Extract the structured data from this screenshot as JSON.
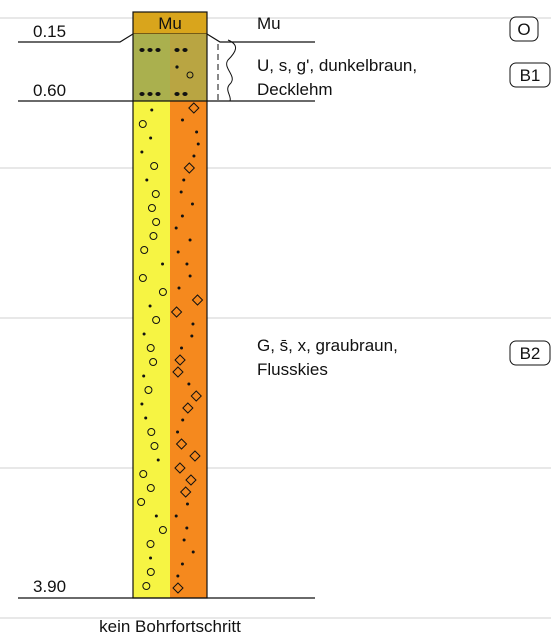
{
  "column": {
    "header": "Mu"
  },
  "depths": [
    "0.15",
    "0.60",
    "3.90"
  ],
  "layers": [
    {
      "description": [
        "Mu"
      ],
      "sample": "O"
    },
    {
      "description": [
        "U, s, g', dunkelbraun,",
        "Decklehm"
      ],
      "sample": "B1"
    },
    {
      "description": [
        "G, s̄, x, graubraun,",
        "Flusskies"
      ],
      "sample": "B2"
    }
  ],
  "footer": "kein Bohrfortschritt"
}
